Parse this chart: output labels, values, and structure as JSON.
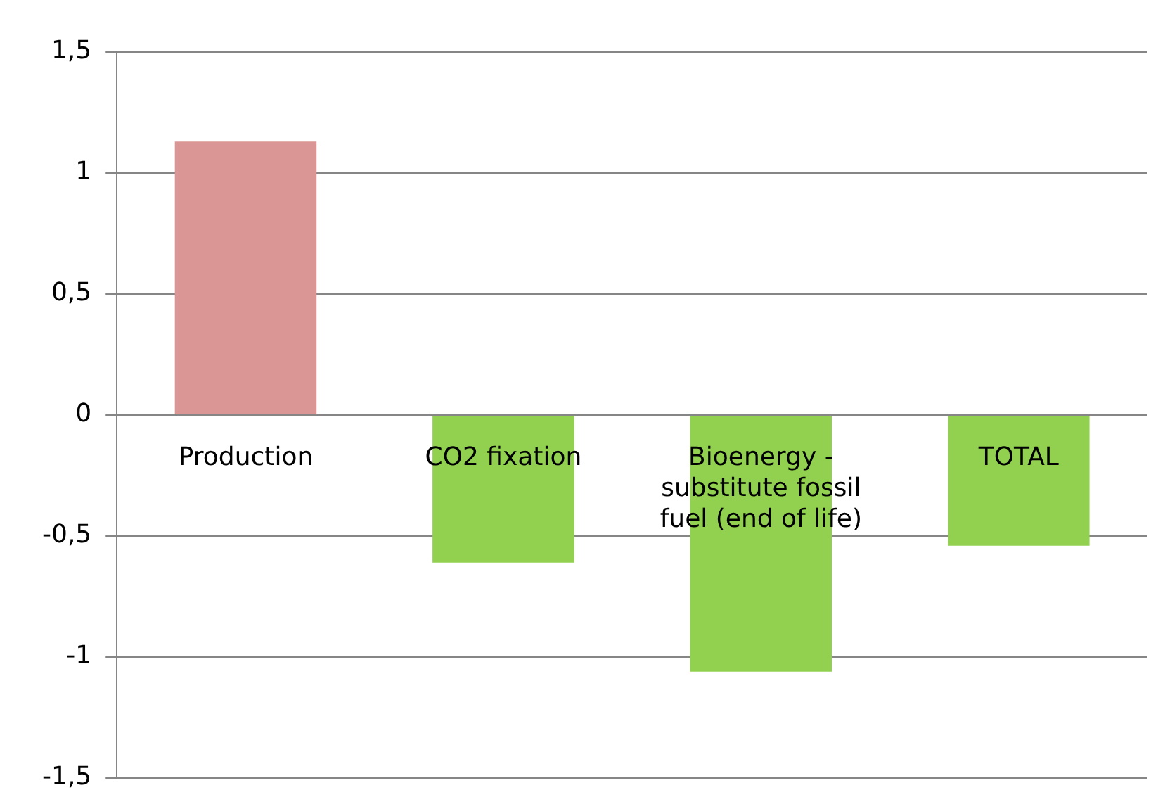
{
  "chart_data": {
    "type": "bar",
    "categories": [
      "Production",
      "CO2 fixation",
      "Bioenergy - substitute fossil fuel (end of life)",
      "TOTAL"
    ],
    "values": [
      1.13,
      -0.61,
      -1.06,
      -0.54
    ],
    "colors": [
      "#d99694",
      "#92d050",
      "#92d050",
      "#92d050"
    ],
    "ylim": [
      -1.5,
      1.5
    ],
    "yticks": [
      {
        "value": -1.5,
        "label": "-1,5"
      },
      -1,
      {
        "value": -0.5,
        "label": "-0,5"
      },
      0,
      {
        "value": 0.5,
        "label": "0,5"
      },
      1,
      {
        "value": 1.5,
        "label": "1,5"
      }
    ],
    "grid": "y",
    "legend": false
  }
}
